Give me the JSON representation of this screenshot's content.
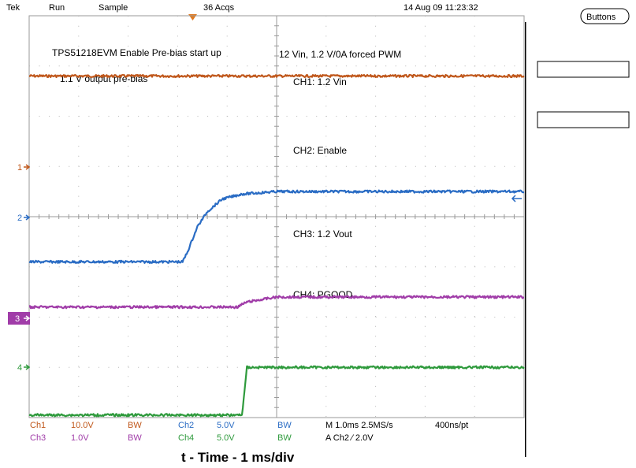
{
  "header": {
    "brand": "Tek",
    "state": "Run",
    "mode": "Sample",
    "acqs": "36 Acqs",
    "datetime": "14 Aug 09 11:23:32"
  },
  "side": {
    "buttons_label": "Buttons"
  },
  "annotations": {
    "title": "TPS51218EVM Enable Pre-bias start up",
    "subtitle": "1.1 V output pre-bias",
    "conditions": "12 Vin, 1.2 V/0A forced PWM",
    "ch1": "CH1: 1.2 Vin",
    "ch2": "CH2: Enable",
    "ch3": "CH3: 1.2 Vout",
    "ch4": "CH4: PGOOD"
  },
  "markers": {
    "m1": "1",
    "m2": "2",
    "m3": "3",
    "m4": "4"
  },
  "footer": {
    "ch1_name": "Ch1",
    "ch1_scale": "10.0V",
    "ch1_bw": "BW",
    "ch2_name": "Ch2",
    "ch2_scale": "5.0V",
    "ch2_bw": "BW",
    "ch3_name": "Ch3",
    "ch3_scale": "1.0V",
    "ch3_bw": "BW",
    "ch4_name": "Ch4",
    "ch4_scale": "5.0V",
    "ch4_bw": "BW",
    "timebase": "M 1.0ms 2.5MS/s",
    "resolution": "400ns/pt",
    "trigger": "A  Ch2  ∕  2.0V"
  },
  "xlabel": "t - Time - 1 ms/div",
  "colors": {
    "ch1": "#c0581c",
    "ch2": "#2a6cc4",
    "ch3": "#a03ca8",
    "ch4": "#2e9a3c",
    "trigger_marker": "#e07a20"
  },
  "chart_data": {
    "type": "line",
    "xlabel": "t - Time - 1 ms/div",
    "x_unit": "ms",
    "xlim": [
      0,
      10
    ],
    "ylim": [
      -4,
      4
    ],
    "y_unit": "div",
    "grid": true,
    "series": [
      {
        "name": "CH1: 1.2 Vin",
        "x": [
          0,
          10
        ],
        "y": [
          2.8,
          2.8
        ]
      },
      {
        "name": "CH2: Enable",
        "x": [
          0,
          3.1,
          3.2,
          3.4,
          3.6,
          3.9,
          4.3,
          5,
          10
        ],
        "y": [
          -0.9,
          -0.9,
          -0.7,
          -0.2,
          0.1,
          0.35,
          0.45,
          0.5,
          0.5
        ]
      },
      {
        "name": "CH3: 1.2 Vout",
        "x": [
          0,
          4.2,
          4.4,
          5,
          10
        ],
        "y": [
          -1.8,
          -1.8,
          -1.7,
          -1.6,
          -1.6
        ]
      },
      {
        "name": "CH4: PGOOD",
        "x": [
          0,
          4.3,
          4.4,
          10
        ],
        "y": [
          -3.95,
          -3.95,
          -3.0,
          -3.0
        ]
      }
    ]
  }
}
